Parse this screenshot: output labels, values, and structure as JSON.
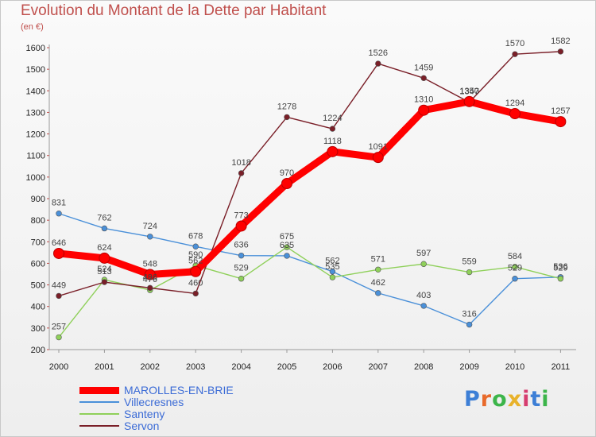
{
  "chart_data": {
    "type": "line",
    "title": "Evolution du Montant de la Dette par Habitant",
    "ylabel": "(en €)",
    "xlabel": "",
    "ylim": [
      200,
      1600
    ],
    "ytick_values": [
      200,
      300,
      400,
      500,
      600,
      700,
      800,
      900,
      1000,
      1100,
      1200,
      1300,
      1400,
      1500,
      1600
    ],
    "categories": [
      "2000",
      "2001",
      "2002",
      "2003",
      "2004",
      "2005",
      "2006",
      "2007",
      "2008",
      "2009",
      "2010",
      "2011"
    ],
    "grid": false,
    "legend_position": "bottom-left",
    "series": [
      {
        "name": "MAROLLES-EN-BRIE",
        "color": "#ff0000",
        "values": [
          646,
          624,
          548,
          562,
          773,
          970,
          1118,
          1091,
          1310,
          1350,
          1294,
          1257
        ]
      },
      {
        "name": "Villecresnes",
        "color": "#4a90d9",
        "values": [
          831,
          762,
          724,
          678,
          636,
          635,
          562,
          462,
          403,
          316,
          529,
          536
        ]
      },
      {
        "name": "Santeny",
        "color": "#8fd05a",
        "values": [
          257,
          524,
          476,
          590,
          529,
          675,
          535,
          571,
          597,
          559,
          584,
          529
        ]
      },
      {
        "name": "Servon",
        "color": "#7a1f28",
        "values": [
          449,
          513,
          486,
          460,
          1018,
          1278,
          1224,
          1526,
          1459,
          1347,
          1570,
          1582
        ]
      }
    ]
  },
  "brand": {
    "name": "Proxiti",
    "letters": [
      "P",
      "r",
      "o",
      "x",
      "i",
      "t",
      "i"
    ],
    "colors": [
      "#3d7fd6",
      "#e86a2b",
      "#3cb54a",
      "#e8b22b",
      "#d63d6f",
      "#3d7fd6",
      "#3cb54a"
    ]
  }
}
